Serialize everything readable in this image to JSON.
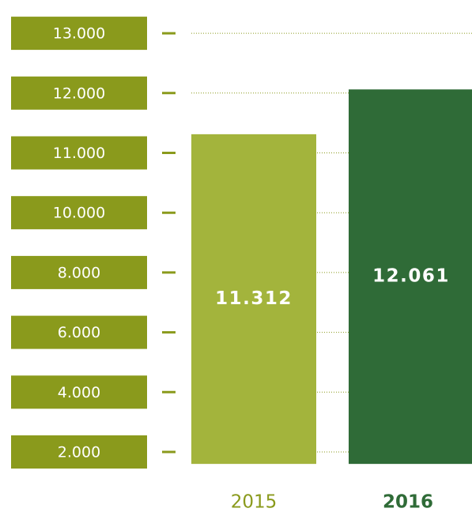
{
  "chart_data": {
    "type": "bar",
    "categories": [
      "2015",
      "2016"
    ],
    "series": [
      {
        "values": [
          11312,
          12061
        ],
        "value_labels": [
          "11.312",
          "12.061"
        ],
        "colors": [
          "#a3b43c",
          "#2f6b37"
        ]
      }
    ],
    "category_label_colors": [
      "#8a9a1c",
      "#2f6b37"
    ],
    "tick_box_color": "#8a9a1c",
    "ylim": [
      1600,
      13000
    ],
    "yticks": [
      {
        "value": 2000,
        "label": "2.000"
      },
      {
        "value": 4000,
        "label": "4.000"
      },
      {
        "value": 6000,
        "label": "6.000"
      },
      {
        "value": 8000,
        "label": "8.000"
      },
      {
        "value": 10000,
        "label": "10.000"
      },
      {
        "value": 11000,
        "label": "11.000"
      },
      {
        "value": 12000,
        "label": "12.000"
      },
      {
        "value": 13000,
        "label": "13.000"
      }
    ],
    "grid": true
  }
}
